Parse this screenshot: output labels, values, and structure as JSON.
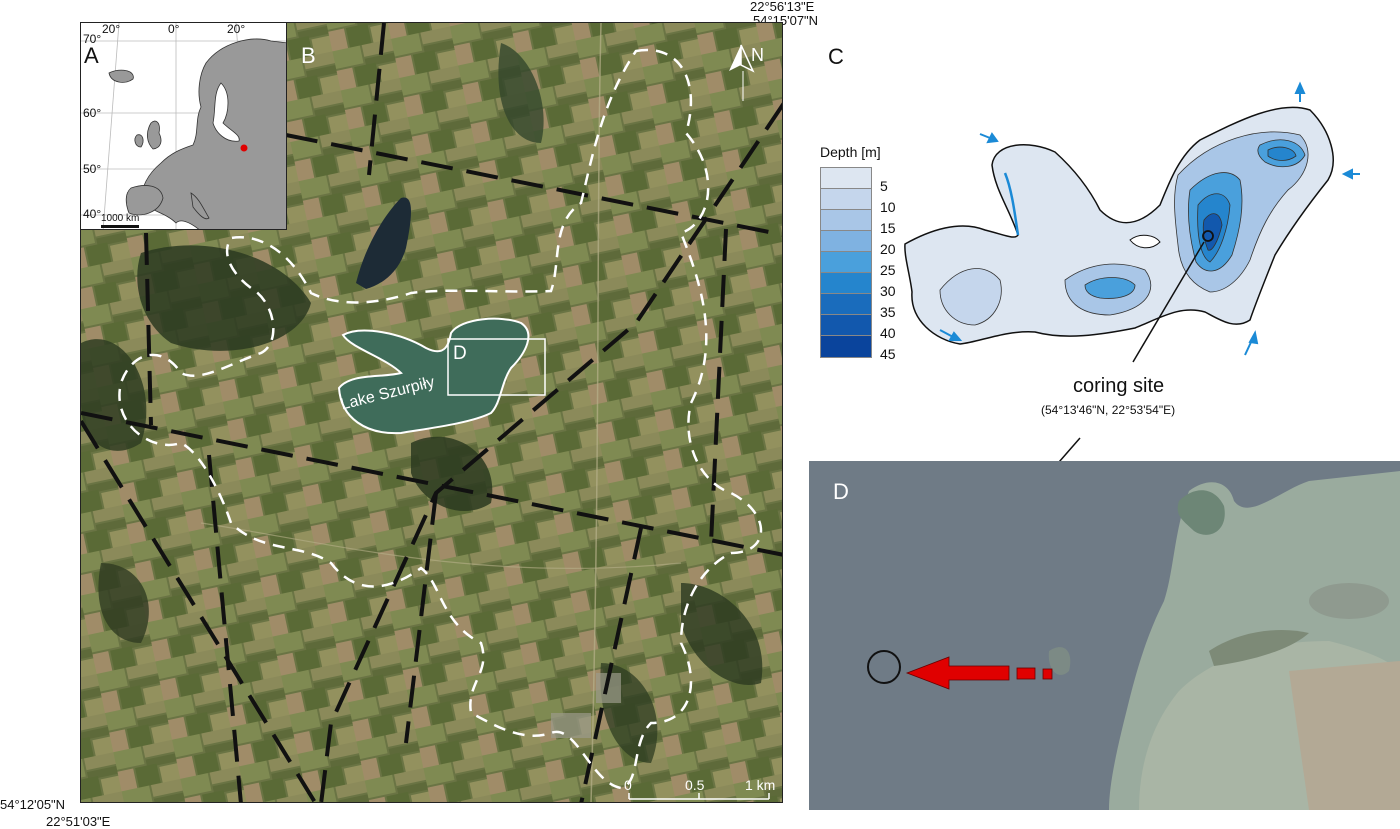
{
  "panels": {
    "a": {
      "letter": "A",
      "scale_text": "1000 km",
      "lon_ticks": [
        "20°",
        "0°",
        "20°"
      ],
      "lat_ticks": [
        "70°",
        "60°",
        "50°",
        "40°"
      ]
    },
    "b": {
      "letter": "B",
      "lake_label": "Lake Szurpiły",
      "inset_letter": "D",
      "north_label": "N",
      "scale_labels": [
        "0",
        "0.5",
        "1 km"
      ]
    },
    "c": {
      "letter": "C",
      "legend_title": "Depth [m]",
      "depth_classes": [
        "5",
        "10",
        "15",
        "20",
        "25",
        "30",
        "35",
        "40",
        "45"
      ],
      "depth_colors": [
        "#dde6f1",
        "#c5d6ec",
        "#a9c6e7",
        "#7fb2e1",
        "#4aa0dc",
        "#2585cd",
        "#1a6cbc",
        "#1258ad",
        "#0a449c"
      ],
      "coring_site_label": "coring site",
      "coring_site_coords": "(54°13'46\"N, 22°53'54\"E)"
    },
    "d": {
      "letter": "D"
    }
  },
  "frame_coords": {
    "top_lon": "22°56'13\"E",
    "top_lat": "54°15'07\"N",
    "bottom_lat": "54°12'05\"N",
    "bottom_lon": "22°51'03\"E"
  },
  "colors": {
    "inflow_arrow": "#1b8ad6",
    "core_arrow": "#e00000",
    "highlight_country": "#e00000"
  }
}
